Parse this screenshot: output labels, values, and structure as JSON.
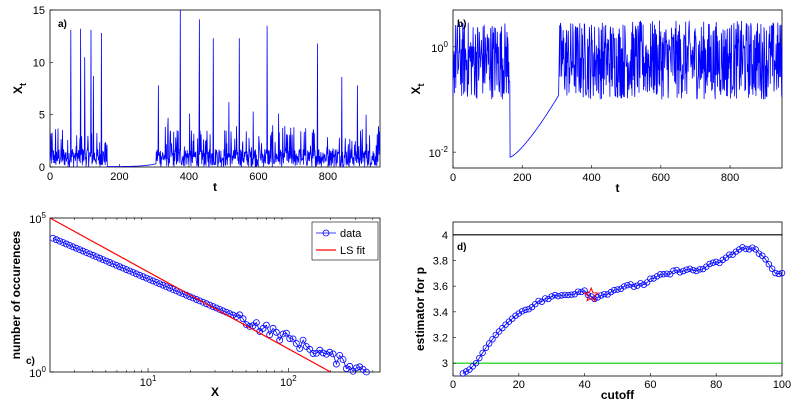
{
  "figure_title": "",
  "chart_data": [
    {
      "panel": "a)",
      "type": "line",
      "title": "",
      "xlabel": "t",
      "ylabel": "X_t",
      "xlim": [
        0,
        950
      ],
      "ylim": [
        0,
        15
      ],
      "xticks": [
        0,
        200,
        400,
        600,
        800
      ],
      "yticks": [
        0,
        5,
        10,
        15
      ],
      "series_color": "#0000ff",
      "quiet_interval": [
        165,
        305
      ],
      "spikes": [
        {
          "t": 60,
          "x": 13.1
        },
        {
          "t": 88,
          "x": 13.2
        },
        {
          "t": 100,
          "x": 10.5
        },
        {
          "t": 118,
          "x": 13.1
        },
        {
          "t": 125,
          "x": 8.7
        },
        {
          "t": 148,
          "x": 12.8
        },
        {
          "t": 312,
          "x": 7.8
        },
        {
          "t": 340,
          "x": 4.7
        },
        {
          "t": 375,
          "x": 15.0
        },
        {
          "t": 402,
          "x": 5.1
        },
        {
          "t": 430,
          "x": 14.1
        },
        {
          "t": 470,
          "x": 12.3
        },
        {
          "t": 515,
          "x": 6.2
        },
        {
          "t": 545,
          "x": 12.3
        },
        {
          "t": 585,
          "x": 5.3
        },
        {
          "t": 625,
          "x": 13.5
        },
        {
          "t": 658,
          "x": 5.1
        },
        {
          "t": 770,
          "x": 11.8
        },
        {
          "t": 840,
          "x": 8.6
        },
        {
          "t": 885,
          "x": 7.8
        },
        {
          "t": 910,
          "x": 5.0
        }
      ]
    },
    {
      "panel": "b)",
      "type": "line",
      "yscale": "log",
      "title": "",
      "xlabel": "t",
      "ylabel": "X_t",
      "xlim": [
        0,
        950
      ],
      "ylim": [
        0.005,
        5
      ],
      "xticks": [
        0,
        200,
        400,
        600,
        800
      ],
      "yticks": [
        {
          "value": 1,
          "label": "10^0"
        },
        {
          "value": 0.01,
          "label": "10^-2"
        }
      ],
      "series_color": "#0000ff",
      "recovery": {
        "t_start": 165,
        "x_start": 0.008,
        "t_end": 305,
        "x_end": 0.12
      }
    },
    {
      "panel": "c)",
      "type": "scatter",
      "xscale": "log",
      "yscale": "log",
      "title": "",
      "xlabel": "X",
      "ylabel": "number of occurences",
      "xlim": [
        2,
        450
      ],
      "ylim": [
        1,
        100000
      ],
      "xticks": [
        {
          "value": 10,
          "label": "10^1"
        },
        {
          "value": 100,
          "label": "10^2"
        }
      ],
      "yticks": [
        {
          "value": 1,
          "label": "10^0"
        },
        {
          "value": 100000,
          "label": "10^5"
        }
      ],
      "legend": {
        "position": "top-right",
        "entries": [
          "data",
          "LS fit"
        ]
      },
      "series": [
        {
          "name": "data",
          "color": "#0000ff",
          "marker": "circle",
          "x_start": 2.1,
          "x_end": 360,
          "y_at_start": 22000,
          "y_at_end": 1
        },
        {
          "name": "LS fit",
          "color": "#ff0000",
          "fit_points": [
            {
              "x": 2,
              "y": 100000
            },
            {
              "x": 200,
              "y": 1
            }
          ]
        }
      ]
    },
    {
      "panel": "d)",
      "type": "line",
      "title": "",
      "xlabel": "cutoff",
      "ylabel": "estimator for p",
      "xlim": [
        0,
        100
      ],
      "ylim": [
        2.9,
        4.1
      ],
      "xticks": [
        0,
        20,
        40,
        60,
        80,
        100
      ],
      "yticks": [
        3,
        3.2,
        3.4,
        3.6,
        3.8,
        4
      ],
      "reference_lines": [
        {
          "y": 4,
          "color": "#000000"
        },
        {
          "y": 3,
          "color": "#00cc00"
        }
      ],
      "marker": {
        "shape": "star",
        "color": "#ff0000",
        "x": 42,
        "y": 3.53
      },
      "series": [
        {
          "name": "estimator",
          "color": "#0000ff",
          "x": [
            3,
            5,
            7,
            10,
            13,
            16,
            19,
            22,
            25,
            28,
            31,
            34,
            37,
            40,
            42,
            44,
            46,
            50,
            54,
            58,
            62,
            66,
            70,
            74,
            78,
            82,
            86,
            88,
            90,
            92,
            94,
            96,
            98,
            100
          ],
          "y": [
            2.92,
            2.95,
            3.0,
            3.12,
            3.22,
            3.3,
            3.37,
            3.42,
            3.46,
            3.5,
            3.52,
            3.53,
            3.55,
            3.57,
            3.52,
            3.51,
            3.54,
            3.58,
            3.6,
            3.62,
            3.67,
            3.7,
            3.73,
            3.72,
            3.76,
            3.8,
            3.87,
            3.9,
            3.88,
            3.9,
            3.83,
            3.77,
            3.7,
            3.71
          ]
        }
      ]
    }
  ]
}
